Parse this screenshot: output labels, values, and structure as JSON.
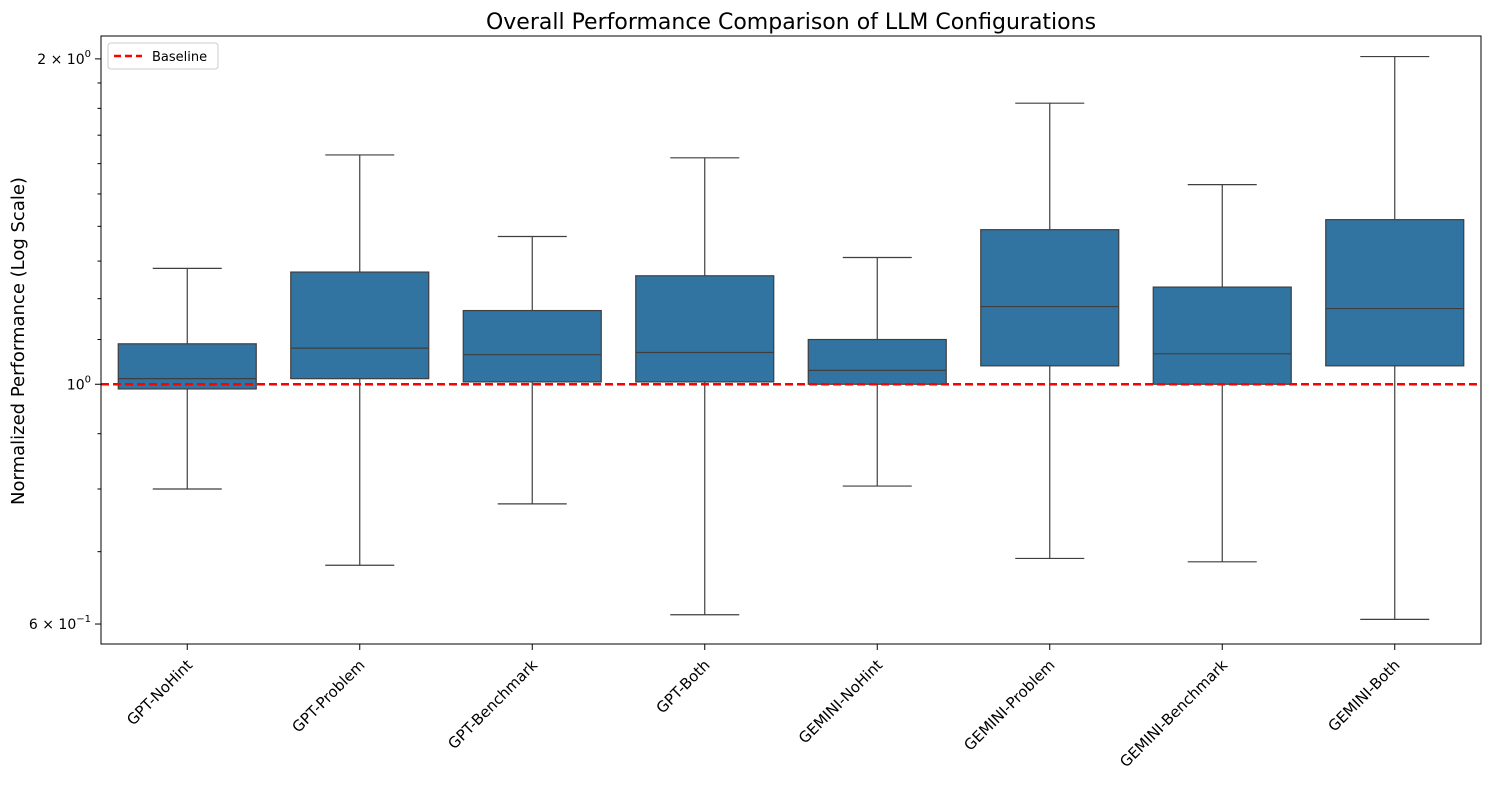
{
  "chart_data": {
    "type": "box",
    "title": "Overall Performance Comparison of LLM Configurations",
    "xlabel": "",
    "ylabel": "Normalized Performance (Log Scale)",
    "y_scale": "log",
    "ylim": [
      0.575,
      2.1
    ],
    "y_major_ticks": [
      {
        "value": 0.6,
        "mantissa": "6",
        "exponent": "−1"
      },
      {
        "value": 1.0,
        "mantissa": "10",
        "exponent": "0"
      },
      {
        "value": 2.0,
        "mantissa": "2",
        "exponent": "0"
      }
    ],
    "y_minor_ticks": [
      0.7,
      0.8,
      0.9,
      1.1,
      1.2,
      1.3,
      1.4,
      1.5,
      1.6,
      1.7,
      1.8,
      1.9
    ],
    "grid": false,
    "box_color": "#3274a1",
    "categories": [
      "GPT-NoHint",
      "GPT-Problem",
      "GPT-Benchmark",
      "GPT-Both",
      "GEMINI-NoHint",
      "GEMINI-Problem",
      "GEMINI-Benchmark",
      "GEMINI-Both"
    ],
    "boxes": [
      {
        "whisker_low": 0.8,
        "q1": 0.99,
        "median": 1.012,
        "q3": 1.09,
        "whisker_high": 1.28
      },
      {
        "whisker_low": 0.68,
        "q1": 1.012,
        "median": 1.08,
        "q3": 1.27,
        "whisker_high": 1.63
      },
      {
        "whisker_low": 0.775,
        "q1": 1.005,
        "median": 1.065,
        "q3": 1.17,
        "whisker_high": 1.37
      },
      {
        "whisker_low": 0.612,
        "q1": 1.005,
        "median": 1.07,
        "q3": 1.26,
        "whisker_high": 1.62
      },
      {
        "whisker_low": 0.805,
        "q1": 1.0,
        "median": 1.03,
        "q3": 1.1,
        "whisker_high": 1.31
      },
      {
        "whisker_low": 0.69,
        "q1": 1.04,
        "median": 1.18,
        "q3": 1.39,
        "whisker_high": 1.82
      },
      {
        "whisker_low": 0.685,
        "q1": 1.0,
        "median": 1.067,
        "q3": 1.23,
        "whisker_high": 1.53
      },
      {
        "whisker_low": 0.606,
        "q1": 1.04,
        "median": 1.175,
        "q3": 1.42,
        "whisker_high": 2.01
      }
    ],
    "baseline": {
      "value": 1.0,
      "label": "Baseline",
      "color": "#ff0000",
      "style": "dashed"
    },
    "legend": {
      "position": "top-left",
      "entries": [
        "Baseline"
      ]
    }
  }
}
